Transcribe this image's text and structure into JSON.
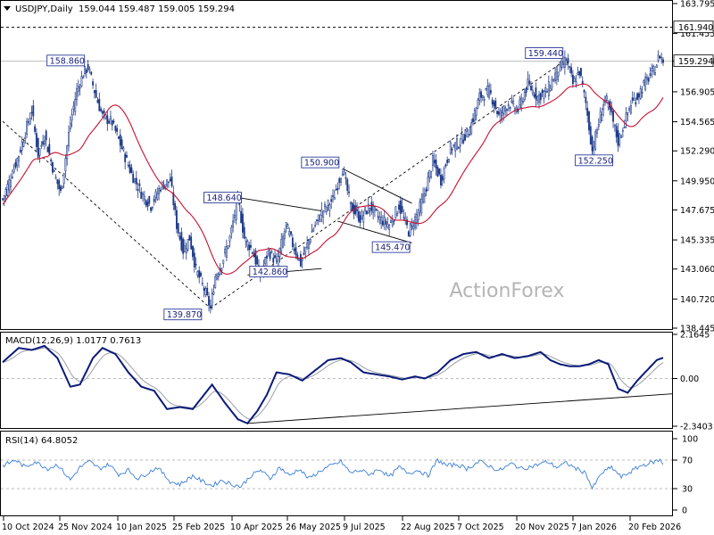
{
  "header": {
    "symbol": "USDJPY,Daily",
    "ohlc": "159.044 159.487 159.005 159.294"
  },
  "watermark": "ActionForex",
  "colors": {
    "candle": "#1e3a8a",
    "ma": "#c8102e",
    "macd": "#0a1a78",
    "signal": "#9aa0aa",
    "rsi": "#3b7dd8",
    "grid": "#cfcfcf",
    "frame": "#000000",
    "label_border": "#2a3a9a"
  },
  "chart_data": [
    {
      "type": "candlestick",
      "panel": "price",
      "y_ticks": [
        "163.795",
        "161.455",
        "159.294",
        "156.905",
        "154.565",
        "152.290",
        "149.950",
        "147.675",
        "145.335",
        "143.060",
        "140.720",
        "138.445"
      ],
      "ylim": [
        138.445,
        163.795
      ],
      "x_ticks": [
        "10 Oct 2024",
        "25 Nov 2024",
        "10 Jan 2025",
        "25 Feb 2025",
        "10 Apr 2025",
        "26 May 2025",
        "9 Jul 2025",
        "22 Aug 2025",
        "7 Oct 2025",
        "20 Nov 2025",
        "7 Jan 2026",
        "20 Feb 2026"
      ],
      "current_price": "159.294",
      "level_line": "161.940",
      "anchors": [
        {
          "day": 0,
          "price": 148.5
        },
        {
          "day": 10,
          "price": 152.0
        },
        {
          "day": 18,
          "price": 155.5
        },
        {
          "day": 22,
          "price": 152.0
        },
        {
          "day": 26,
          "price": 153.5
        },
        {
          "day": 32,
          "price": 150.5
        },
        {
          "day": 36,
          "price": 149.0
        },
        {
          "day": 42,
          "price": 154.5
        },
        {
          "day": 46,
          "price": 157.0
        },
        {
          "day": 50,
          "price": 158.3
        },
        {
          "day": 53,
          "price": 158.86
        },
        {
          "day": 58,
          "price": 156.5
        },
        {
          "day": 62,
          "price": 155.0
        },
        {
          "day": 68,
          "price": 154.5
        },
        {
          "day": 74,
          "price": 152.5
        },
        {
          "day": 80,
          "price": 150.5
        },
        {
          "day": 86,
          "price": 149.0
        },
        {
          "day": 92,
          "price": 148.0
        },
        {
          "day": 98,
          "price": 149.5
        },
        {
          "day": 104,
          "price": 150.0
        },
        {
          "day": 108,
          "price": 146.5
        },
        {
          "day": 112,
          "price": 144.5
        },
        {
          "day": 116,
          "price": 145.5
        },
        {
          "day": 120,
          "price": 143.0
        },
        {
          "day": 125,
          "price": 141.5
        },
        {
          "day": 129,
          "price": 140.0
        },
        {
          "day": 132,
          "price": 142.5
        },
        {
          "day": 136,
          "price": 143.5
        },
        {
          "day": 141,
          "price": 145.5
        },
        {
          "day": 146,
          "price": 148.6
        },
        {
          "day": 150,
          "price": 145.5
        },
        {
          "day": 155,
          "price": 144.5
        },
        {
          "day": 160,
          "price": 142.5
        },
        {
          "day": 165,
          "price": 144.5
        },
        {
          "day": 170,
          "price": 143.5
        },
        {
          "day": 176,
          "price": 146.5
        },
        {
          "day": 180,
          "price": 145.0
        },
        {
          "day": 185,
          "price": 143.5
        },
        {
          "day": 192,
          "price": 146.0
        },
        {
          "day": 198,
          "price": 147.5
        },
        {
          "day": 205,
          "price": 148.5
        },
        {
          "day": 211,
          "price": 150.9
        },
        {
          "day": 216,
          "price": 148.0
        },
        {
          "day": 222,
          "price": 147.0
        },
        {
          "day": 228,
          "price": 148.0
        },
        {
          "day": 234,
          "price": 147.0
        },
        {
          "day": 240,
          "price": 146.5
        },
        {
          "day": 246,
          "price": 148.0
        },
        {
          "day": 252,
          "price": 146.0
        },
        {
          "day": 258,
          "price": 147.5
        },
        {
          "day": 262,
          "price": 149.0
        },
        {
          "day": 267,
          "price": 151.5
        },
        {
          "day": 272,
          "price": 150.0
        },
        {
          "day": 278,
          "price": 152.5
        },
        {
          "day": 284,
          "price": 153.0
        },
        {
          "day": 290,
          "price": 154.0
        },
        {
          "day": 296,
          "price": 156.5
        },
        {
          "day": 302,
          "price": 157.0
        },
        {
          "day": 308,
          "price": 155.0
        },
        {
          "day": 314,
          "price": 156.0
        },
        {
          "day": 320,
          "price": 155.5
        },
        {
          "day": 326,
          "price": 157.5
        },
        {
          "day": 332,
          "price": 156.5
        },
        {
          "day": 338,
          "price": 157.0
        },
        {
          "day": 344,
          "price": 158.5
        },
        {
          "day": 350,
          "price": 159.44
        },
        {
          "day": 354,
          "price": 157.5
        },
        {
          "day": 358,
          "price": 158.5
        },
        {
          "day": 362,
          "price": 156.0
        },
        {
          "day": 366,
          "price": 152.3
        },
        {
          "day": 370,
          "price": 154.5
        },
        {
          "day": 374,
          "price": 156.5
        },
        {
          "day": 378,
          "price": 155.0
        },
        {
          "day": 382,
          "price": 153.0
        },
        {
          "day": 386,
          "price": 154.5
        },
        {
          "day": 390,
          "price": 156.0
        },
        {
          "day": 394,
          "price": 156.5
        },
        {
          "day": 398,
          "price": 157.5
        },
        {
          "day": 404,
          "price": 158.5
        },
        {
          "day": 408,
          "price": 159.8
        },
        {
          "day": 410,
          "price": 159.29
        }
      ],
      "annotations": [
        {
          "text": "158.860",
          "day": 53,
          "price": 158.86,
          "pos": "above-left"
        },
        {
          "text": "148.640",
          "day": 146,
          "price": 148.64,
          "pos": "left"
        },
        {
          "text": "139.870",
          "day": 129,
          "price": 140.0,
          "pos": "below-left"
        },
        {
          "text": "142.860",
          "day": 165,
          "price": 142.86,
          "pos": "on"
        },
        {
          "text": "150.900",
          "day": 211,
          "price": 150.9,
          "pos": "above-left"
        },
        {
          "text": "145.470",
          "day": 240,
          "price": 145.47,
          "pos": "below"
        },
        {
          "text": "159.440",
          "day": 350,
          "price": 159.44,
          "pos": "above-left"
        },
        {
          "text": "152.250",
          "day": 366,
          "price": 152.25,
          "pos": "below"
        }
      ]
    },
    {
      "type": "line",
      "panel": "macd",
      "label": "MACD(12,26,9) 1.0177 0.7613",
      "y_ticks": [
        "2.1645",
        "0.00",
        "-2.3403"
      ],
      "ylim": [
        -2.3403,
        2.1645
      ],
      "anchors": [
        {
          "day": 0,
          "v": 0.8
        },
        {
          "day": 10,
          "v": 1.5
        },
        {
          "day": 18,
          "v": 1.4
        },
        {
          "day": 26,
          "v": 1.6
        },
        {
          "day": 34,
          "v": 1.0
        },
        {
          "day": 42,
          "v": -0.4
        },
        {
          "day": 48,
          "v": -0.3
        },
        {
          "day": 56,
          "v": 1.0
        },
        {
          "day": 62,
          "v": 1.5
        },
        {
          "day": 70,
          "v": 1.2
        },
        {
          "day": 78,
          "v": 0.3
        },
        {
          "day": 86,
          "v": -0.4
        },
        {
          "day": 94,
          "v": -0.6
        },
        {
          "day": 102,
          "v": -1.5
        },
        {
          "day": 110,
          "v": -1.4
        },
        {
          "day": 118,
          "v": -1.5
        },
        {
          "day": 124,
          "v": -0.9
        },
        {
          "day": 130,
          "v": -0.3
        },
        {
          "day": 138,
          "v": -1.2
        },
        {
          "day": 146,
          "v": -2.0
        },
        {
          "day": 152,
          "v": -2.2
        },
        {
          "day": 158,
          "v": -1.6
        },
        {
          "day": 164,
          "v": -0.8
        },
        {
          "day": 170,
          "v": 0.3
        },
        {
          "day": 178,
          "v": 0.2
        },
        {
          "day": 186,
          "v": -0.1
        },
        {
          "day": 194,
          "v": 0.4
        },
        {
          "day": 202,
          "v": 0.9
        },
        {
          "day": 210,
          "v": 1.0
        },
        {
          "day": 216,
          "v": 0.8
        },
        {
          "day": 224,
          "v": 0.3
        },
        {
          "day": 232,
          "v": 0.2
        },
        {
          "day": 240,
          "v": 0.1
        },
        {
          "day": 248,
          "v": -0.05
        },
        {
          "day": 256,
          "v": 0.1
        },
        {
          "day": 262,
          "v": 0.0
        },
        {
          "day": 270,
          "v": 0.3
        },
        {
          "day": 278,
          "v": 0.9
        },
        {
          "day": 286,
          "v": 1.2
        },
        {
          "day": 294,
          "v": 1.3
        },
        {
          "day": 302,
          "v": 1.0
        },
        {
          "day": 310,
          "v": 1.2
        },
        {
          "day": 318,
          "v": 1.0
        },
        {
          "day": 326,
          "v": 1.1
        },
        {
          "day": 334,
          "v": 1.3
        },
        {
          "day": 340,
          "v": 0.9
        },
        {
          "day": 346,
          "v": 0.7
        },
        {
          "day": 352,
          "v": 0.6
        },
        {
          "day": 358,
          "v": 0.6
        },
        {
          "day": 364,
          "v": 0.7
        },
        {
          "day": 370,
          "v": 0.9
        },
        {
          "day": 376,
          "v": 0.7
        },
        {
          "day": 382,
          "v": -0.5
        },
        {
          "day": 388,
          "v": -0.7
        },
        {
          "day": 394,
          "v": -0.1
        },
        {
          "day": 400,
          "v": 0.4
        },
        {
          "day": 406,
          "v": 0.9
        },
        {
          "day": 410,
          "v": 1.02
        }
      ]
    },
    {
      "type": "line",
      "panel": "rsi",
      "label": "RSI(14) 64.8052",
      "y_ticks": [
        "100",
        "70",
        "30",
        "0"
      ],
      "ylim": [
        0,
        100
      ],
      "anchors": [
        {
          "day": 0,
          "v": 62
        },
        {
          "day": 8,
          "v": 70
        },
        {
          "day": 14,
          "v": 60
        },
        {
          "day": 20,
          "v": 68
        },
        {
          "day": 28,
          "v": 58
        },
        {
          "day": 34,
          "v": 64
        },
        {
          "day": 42,
          "v": 42
        },
        {
          "day": 48,
          "v": 60
        },
        {
          "day": 54,
          "v": 68
        },
        {
          "day": 60,
          "v": 58
        },
        {
          "day": 66,
          "v": 64
        },
        {
          "day": 72,
          "v": 50
        },
        {
          "day": 78,
          "v": 56
        },
        {
          "day": 84,
          "v": 44
        },
        {
          "day": 90,
          "v": 52
        },
        {
          "day": 96,
          "v": 60
        },
        {
          "day": 104,
          "v": 40
        },
        {
          "day": 110,
          "v": 36
        },
        {
          "day": 118,
          "v": 48
        },
        {
          "day": 124,
          "v": 40
        },
        {
          "day": 130,
          "v": 34
        },
        {
          "day": 136,
          "v": 42
        },
        {
          "day": 142,
          "v": 36
        },
        {
          "day": 148,
          "v": 33
        },
        {
          "day": 154,
          "v": 48
        },
        {
          "day": 160,
          "v": 56
        },
        {
          "day": 166,
          "v": 44
        },
        {
          "day": 172,
          "v": 60
        },
        {
          "day": 178,
          "v": 48
        },
        {
          "day": 184,
          "v": 58
        },
        {
          "day": 190,
          "v": 44
        },
        {
          "day": 198,
          "v": 56
        },
        {
          "day": 204,
          "v": 62
        },
        {
          "day": 210,
          "v": 68
        },
        {
          "day": 216,
          "v": 52
        },
        {
          "day": 222,
          "v": 56
        },
        {
          "day": 228,
          "v": 50
        },
        {
          "day": 234,
          "v": 58
        },
        {
          "day": 240,
          "v": 46
        },
        {
          "day": 246,
          "v": 60
        },
        {
          "day": 252,
          "v": 52
        },
        {
          "day": 258,
          "v": 56
        },
        {
          "day": 264,
          "v": 48
        },
        {
          "day": 270,
          "v": 70
        },
        {
          "day": 276,
          "v": 62
        },
        {
          "day": 282,
          "v": 64
        },
        {
          "day": 288,
          "v": 58
        },
        {
          "day": 296,
          "v": 68
        },
        {
          "day": 302,
          "v": 62
        },
        {
          "day": 308,
          "v": 55
        },
        {
          "day": 316,
          "v": 65
        },
        {
          "day": 322,
          "v": 58
        },
        {
          "day": 330,
          "v": 62
        },
        {
          "day": 338,
          "v": 68
        },
        {
          "day": 344,
          "v": 60
        },
        {
          "day": 350,
          "v": 66
        },
        {
          "day": 356,
          "v": 58
        },
        {
          "day": 362,
          "v": 52
        },
        {
          "day": 366,
          "v": 30
        },
        {
          "day": 372,
          "v": 52
        },
        {
          "day": 378,
          "v": 60
        },
        {
          "day": 384,
          "v": 46
        },
        {
          "day": 390,
          "v": 54
        },
        {
          "day": 396,
          "v": 62
        },
        {
          "day": 402,
          "v": 66
        },
        {
          "day": 408,
          "v": 70
        },
        {
          "day": 410,
          "v": 65
        }
      ]
    }
  ]
}
